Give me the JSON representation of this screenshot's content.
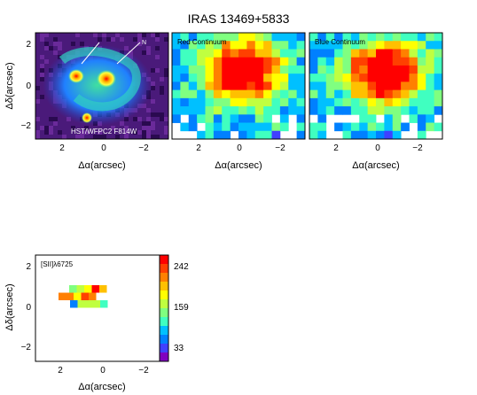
{
  "figure": {
    "title": "IRAS 13469+5833",
    "xlabel": "Δα(arcsec)",
    "ylabel": "Δδ(arcsec)",
    "x_ticks": [
      "2",
      "0",
      "−2"
    ],
    "y_ticks": [
      "2",
      "0",
      "−2"
    ]
  },
  "panels": [
    {
      "id": "hst",
      "label": "HST/WFPC2 F814W",
      "kind": "image"
    },
    {
      "id": "red",
      "label": "Red Continuum",
      "kind": "map"
    },
    {
      "id": "blue",
      "label": "Blue Continuum",
      "kind": "map"
    },
    {
      "id": "sii",
      "label": "[SII]λ6725",
      "kind": "map"
    }
  ],
  "colorbar": {
    "tick_labels": [
      "242",
      "159",
      "33"
    ],
    "colors": [
      "#ff0000",
      "#ff4000",
      "#ff8000",
      "#ffc000",
      "#ffff00",
      "#c0ff40",
      "#80ff80",
      "#40ffc0",
      "#00c0ff",
      "#0080ff",
      "#4040ff",
      "#8000c0"
    ]
  },
  "chart_data": {
    "type": "heatmap",
    "title": "IRAS 13469+5833",
    "xlabel": "Δα(arcsec)",
    "ylabel": "Δδ(arcsec)",
    "xlim": [
      3.2,
      -3.0
    ],
    "ylim": [
      -2.8,
      2.8
    ],
    "colorbar_ticks": [
      242,
      159,
      33
    ],
    "sii_map": {
      "x": [
        1.5,
        1.0,
        0.5,
        0.0,
        -0.5
      ],
      "y": [
        0.5,
        0.0,
        -0.5
      ],
      "note_rows_top_to_bottom": [
        [
          120,
          150,
          170,
          240,
          180
        ],
        [
          200,
          210,
          160,
          230,
          200
        ],
        [
          60,
          140,
          150,
          140,
          100
        ]
      ]
    }
  }
}
